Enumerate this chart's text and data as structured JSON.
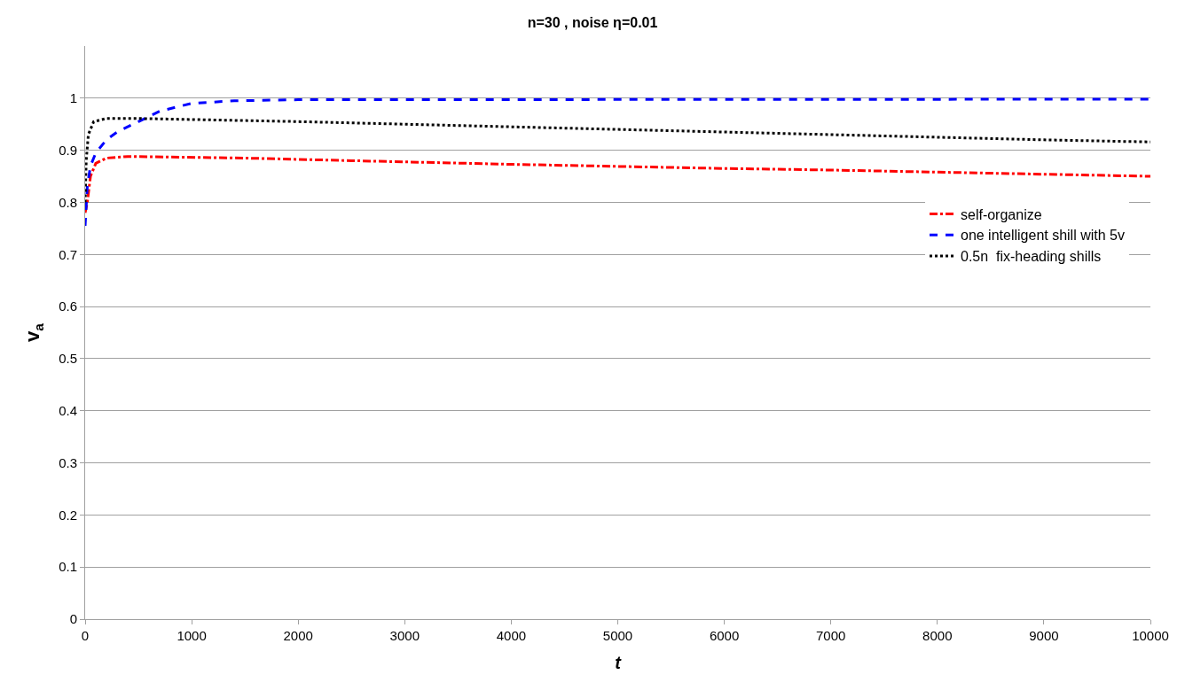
{
  "chart_data": {
    "type": "line",
    "title": "n=30 , noise η=0.01",
    "xlabel": "t",
    "ylabel": "v$_{a}$",
    "xlim": [
      0,
      10000
    ],
    "xticks": [
      0,
      1000,
      2000,
      3000,
      4000,
      5000,
      6000,
      7000,
      8000,
      9000,
      10000
    ],
    "ylim": [
      0,
      1.1
    ],
    "yticks": [
      0,
      0.1,
      0.2,
      0.3,
      0.4,
      0.5,
      0.6,
      0.7,
      0.8,
      0.9,
      1
    ],
    "grid": "y",
    "legend": "right",
    "marker": "none",
    "series": [
      {
        "name": "self-organize",
        "color": "#ff0000",
        "line_style": "dashdot",
        "x": [
          0,
          20,
          50,
          100,
          200,
          400,
          800,
          1500,
          2500,
          4000,
          5000,
          6000,
          7000,
          8000,
          9000,
          10000
        ],
        "values": [
          0.78,
          0.8,
          0.85,
          0.875,
          0.885,
          0.888,
          0.887,
          0.885,
          0.88,
          0.873,
          0.869,
          0.865,
          0.862,
          0.858,
          0.854,
          0.85
        ]
      },
      {
        "name": "one intelligent shill with 5v",
        "color": "#0000ff",
        "line_style": "dashed",
        "x": [
          0,
          20,
          50,
          100,
          200,
          300,
          500,
          700,
          1000,
          1400,
          2000,
          10000
        ],
        "values": [
          0.755,
          0.83,
          0.87,
          0.895,
          0.92,
          0.935,
          0.955,
          0.975,
          0.99,
          0.995,
          0.997,
          0.998
        ]
      },
      {
        "name": "0.5n  fix-heading shills",
        "color": "#000000",
        "line_style": "dotted",
        "x": [
          0,
          10,
          30,
          80,
          200,
          500,
          1000,
          2000,
          3000,
          4000,
          5000,
          6000,
          7000,
          8000,
          9000,
          10000
        ],
        "values": [
          0.8,
          0.88,
          0.93,
          0.955,
          0.961,
          0.961,
          0.959,
          0.955,
          0.95,
          0.945,
          0.94,
          0.935,
          0.93,
          0.925,
          0.92,
          0.916
        ]
      }
    ]
  }
}
